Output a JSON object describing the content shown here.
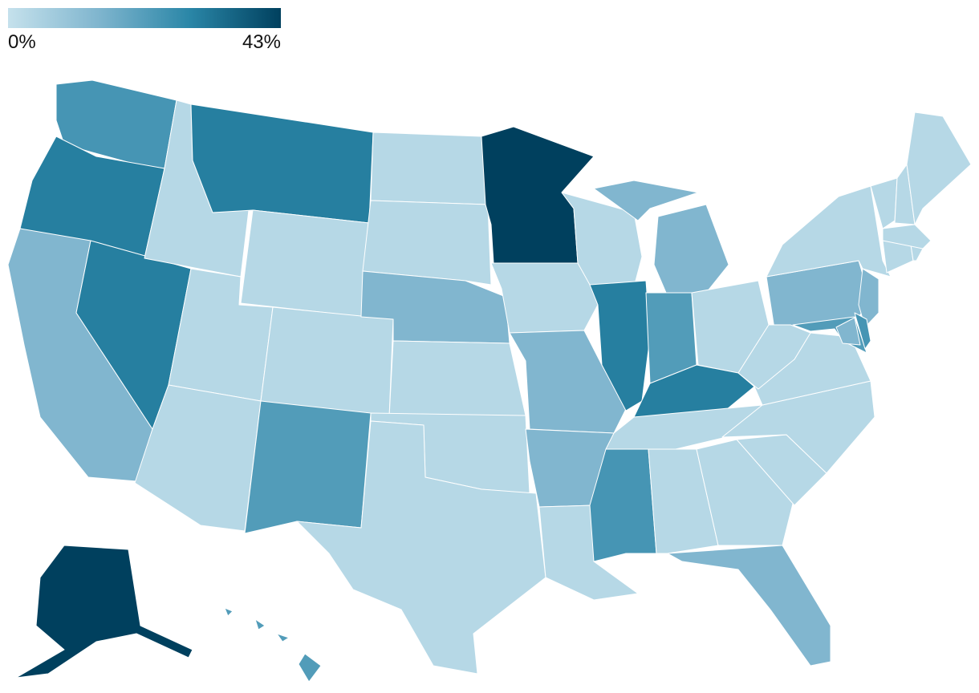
{
  "chart_data": {
    "type": "choropleth",
    "scale": [
      {
        "value": 0,
        "label": "0%"
      },
      {
        "value": 43,
        "label": "43%"
      }
    ],
    "colors": [
      "#c5e1ec",
      "#7fb5ce",
      "#2a86a7",
      "#00405e"
    ],
    "values": [
      24,
      30,
      14,
      30,
      3,
      30,
      3,
      3,
      3,
      3,
      22,
      3,
      3,
      14,
      3,
      3,
      3,
      43,
      3,
      14,
      14,
      3,
      3,
      30,
      14,
      14,
      22,
      3,
      30,
      3,
      24,
      3,
      3,
      14,
      3,
      3,
      3,
      3,
      14,
      22,
      24,
      14,
      3,
      3,
      3,
      3,
      3,
      3,
      3,
      43,
      22
    ]
  }
}
